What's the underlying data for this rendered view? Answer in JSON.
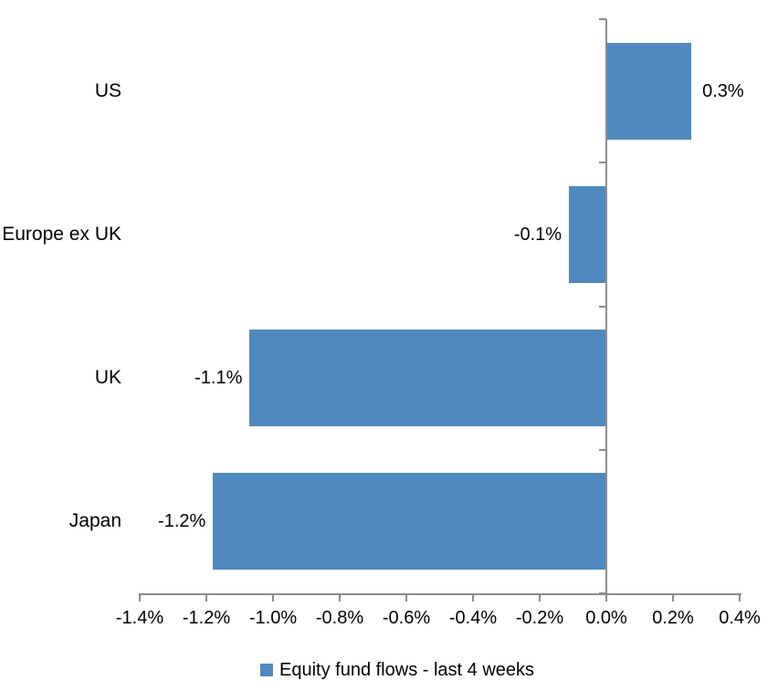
{
  "chart_data": {
    "type": "bar",
    "orientation": "horizontal",
    "title": "",
    "categories": [
      "US",
      "Europe ex UK",
      "UK",
      "Japan"
    ],
    "values": [
      0.255,
      -0.112,
      -1.07,
      -1.18
    ],
    "data_labels": [
      "0.3%",
      "-0.1%",
      "-1.1%",
      "-1.2%"
    ],
    "series": [
      {
        "name": "Equity fund flows - last 4 weeks",
        "values": [
          0.255,
          -0.112,
          -1.07,
          -1.18
        ]
      }
    ],
    "xlim": [
      -1.4,
      0.4
    ],
    "x_ticks": [
      -1.4,
      -1.2,
      -1.0,
      -0.8,
      -0.6,
      -0.4,
      -0.2,
      0.0,
      0.2,
      0.4
    ],
    "x_tick_labels": [
      "-1.4%",
      "-1.2%",
      "-1.0%",
      "-0.8%",
      "-0.6%",
      "-0.4%",
      "-0.2%",
      "0.0%",
      "0.2%",
      "0.4%"
    ],
    "xlabel": "",
    "ylabel": "",
    "grid": false,
    "legend": {
      "label": "Equity fund flows - last 4 weeks",
      "position": "bottom"
    },
    "bar_color": "#4F89BE",
    "axis_color": "#8C8C8C",
    "text_color": "#000000",
    "background_color": "#FFFFFF"
  }
}
